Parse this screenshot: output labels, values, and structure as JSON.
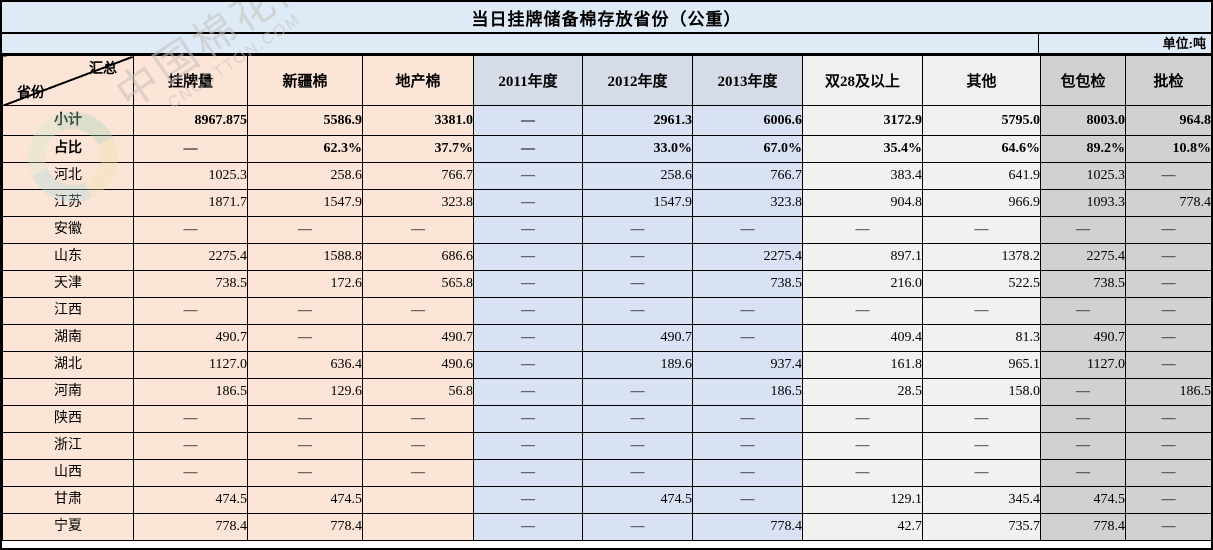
{
  "title": "当日挂牌储备棉存放省份（公重）",
  "unit_label": "单位:吨",
  "corner": {
    "top": "汇总",
    "bottom": "省份"
  },
  "watermark": {
    "text_cn": "中国棉花网",
    "text_en": "CNCOTTON.COM"
  },
  "colors": {
    "header_peach": "#FCE4D6",
    "header_year": "#D5DBE7",
    "header_light_gray": "#F0F0EE",
    "header_dark_gray": "#D1CFCF",
    "data_year": "#D9E2F3",
    "title_band_blue": "#DEEAF6",
    "border": "#000000"
  },
  "chart_data": {
    "type": "table",
    "title": "当日挂牌储备棉存放省份（公重）",
    "unit": "吨",
    "columns": [
      "挂牌量",
      "新疆棉",
      "地产棉",
      "2011年度",
      "2012年度",
      "2013年度",
      "双28及以上",
      "其他",
      "包包检",
      "批检"
    ],
    "rows": [
      {
        "label": "小计",
        "bold": true,
        "values": [
          "8967.875",
          "5586.9",
          "3381.0",
          "—",
          "2961.3",
          "6006.6",
          "3172.9",
          "5795.0",
          "8003.0",
          "964.8"
        ]
      },
      {
        "label": "占比",
        "bold": true,
        "values": [
          "—",
          "62.3%",
          "37.7%",
          "—",
          "33.0%",
          "67.0%",
          "35.4%",
          "64.6%",
          "89.2%",
          "10.8%"
        ]
      },
      {
        "label": "河北",
        "bold": false,
        "values": [
          "1025.3",
          "258.6",
          "766.7",
          "—",
          "258.6",
          "766.7",
          "383.4",
          "641.9",
          "1025.3",
          "—"
        ]
      },
      {
        "label": "江苏",
        "bold": false,
        "values": [
          "1871.7",
          "1547.9",
          "323.8",
          "—",
          "1547.9",
          "323.8",
          "904.8",
          "966.9",
          "1093.3",
          "778.4"
        ]
      },
      {
        "label": "安徽",
        "bold": false,
        "values": [
          "—",
          "—",
          "—",
          "—",
          "—",
          "—",
          "—",
          "—",
          "—",
          "—"
        ]
      },
      {
        "label": "山东",
        "bold": false,
        "values": [
          "2275.4",
          "1588.8",
          "686.6",
          "—",
          "—",
          "2275.4",
          "897.1",
          "1378.2",
          "2275.4",
          "—"
        ]
      },
      {
        "label": "天津",
        "bold": false,
        "values": [
          "738.5",
          "172.6",
          "565.8",
          "—",
          "—",
          "738.5",
          "216.0",
          "522.5",
          "738.5",
          "—"
        ]
      },
      {
        "label": "江西",
        "bold": false,
        "values": [
          "—",
          "—",
          "—",
          "—",
          "—",
          "—",
          "—",
          "—",
          "—",
          "—"
        ]
      },
      {
        "label": "湖南",
        "bold": false,
        "values": [
          "490.7",
          "—",
          "490.7",
          "—",
          "490.7",
          "—",
          "409.4",
          "81.3",
          "490.7",
          "—"
        ]
      },
      {
        "label": "湖北",
        "bold": false,
        "values": [
          "1127.0",
          "636.4",
          "490.6",
          "—",
          "189.6",
          "937.4",
          "161.8",
          "965.1",
          "1127.0",
          "—"
        ]
      },
      {
        "label": "河南",
        "bold": false,
        "values": [
          "186.5",
          "129.6",
          "56.8",
          "—",
          "—",
          "186.5",
          "28.5",
          "158.0",
          "—",
          "186.5"
        ]
      },
      {
        "label": "陕西",
        "bold": false,
        "values": [
          "—",
          "—",
          "—",
          "—",
          "—",
          "—",
          "—",
          "—",
          "—",
          "—"
        ]
      },
      {
        "label": "浙江",
        "bold": false,
        "values": [
          "—",
          "—",
          "—",
          "—",
          "—",
          "—",
          "—",
          "—",
          "—",
          "—"
        ]
      },
      {
        "label": "山西",
        "bold": false,
        "values": [
          "—",
          "—",
          "—",
          "—",
          "—",
          "—",
          "—",
          "—",
          "—",
          "—"
        ]
      },
      {
        "label": "甘肃",
        "bold": false,
        "values": [
          "474.5",
          "474.5",
          "",
          "—",
          "474.5",
          "—",
          "129.1",
          "345.4",
          "474.5",
          "—"
        ]
      },
      {
        "label": "宁夏",
        "bold": false,
        "values": [
          "778.4",
          "778.4",
          "",
          "—",
          "—",
          "778.4",
          "42.7",
          "735.7",
          "778.4",
          "—"
        ]
      }
    ]
  }
}
